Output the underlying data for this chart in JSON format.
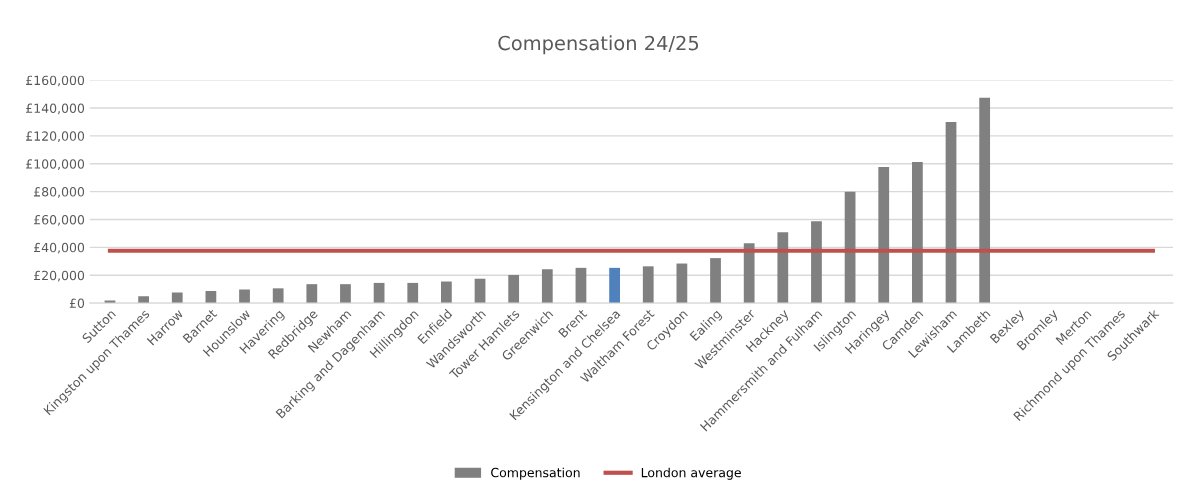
{
  "chart_data": {
    "type": "bar",
    "title": "Compensation 24/25",
    "categories": [
      "Sutton",
      "Kingston upon Thames",
      "Harrow",
      "Barnet",
      "Hounslow",
      "Havering",
      "Redbridge",
      "Newham",
      "Barking and Dagenham",
      "Hillingdon",
      "Enfield",
      "Wandsworth",
      "Tower Hamlets",
      "Greenwich",
      "Brent",
      "Kensington and Chelsea",
      "Waltham Forest",
      "Croydon",
      "Ealing",
      "Westminster",
      "Hackney",
      "Hammersmith and Fulham",
      "Islington",
      "Haringey",
      "Camden",
      "Lewisham",
      "Lambeth",
      "Bexley",
      "Bromley",
      "Merton",
      "Richmond upon Thames",
      "Southwark"
    ],
    "series": [
      {
        "name": "Compensation",
        "color": "#808080",
        "colors": [
          "#808080",
          "#808080",
          "#808080",
          "#808080",
          "#808080",
          "#808080",
          "#808080",
          "#808080",
          "#808080",
          "#808080",
          "#808080",
          "#808080",
          "#808080",
          "#808080",
          "#808080",
          "#4f81bd",
          "#808080",
          "#808080",
          "#808080",
          "#808080",
          "#808080",
          "#808080",
          "#808080",
          "#808080",
          "#808080",
          "#808080",
          "#808080",
          "#808080",
          "#808080",
          "#808080",
          "#808080",
          "#808080"
        ],
        "values": [
          1900,
          4900,
          7600,
          8700,
          9800,
          10600,
          13600,
          13600,
          14500,
          14500,
          15500,
          17500,
          20200,
          24300,
          25300,
          25300,
          26400,
          28400,
          32300,
          42900,
          50800,
          58700,
          80000,
          97700,
          101300,
          130000,
          147400,
          null,
          null,
          null,
          null,
          null
        ]
      },
      {
        "name": "London average",
        "type": "line",
        "color": "#c0504d",
        "values": [
          37600,
          37600,
          37600,
          37600,
          37600,
          37600,
          37600,
          37600,
          37600,
          37600,
          37600,
          37600,
          37600,
          37600,
          37600,
          37600,
          37600,
          37600,
          37600,
          37600,
          37600,
          37600,
          37600,
          37600,
          37600,
          37600,
          37600,
          37600,
          37600,
          37600,
          37600,
          37600
        ]
      }
    ],
    "ylim": [
      0,
      160000
    ],
    "yticks": [
      {
        "value": 0,
        "label": "£0"
      },
      {
        "value": 20000,
        "label": "£20,000"
      },
      {
        "value": 40000,
        "label": "£40,000"
      },
      {
        "value": 60000,
        "label": "£60,000"
      },
      {
        "value": 80000,
        "label": "£80,000"
      },
      {
        "value": 100000,
        "label": "£100,000"
      },
      {
        "value": 120000,
        "label": "£120,000"
      },
      {
        "value": 140000,
        "label": "£140,000"
      },
      {
        "value": 160000,
        "label": "£160,000"
      }
    ],
    "grid": "y",
    "legend": "bottom"
  }
}
